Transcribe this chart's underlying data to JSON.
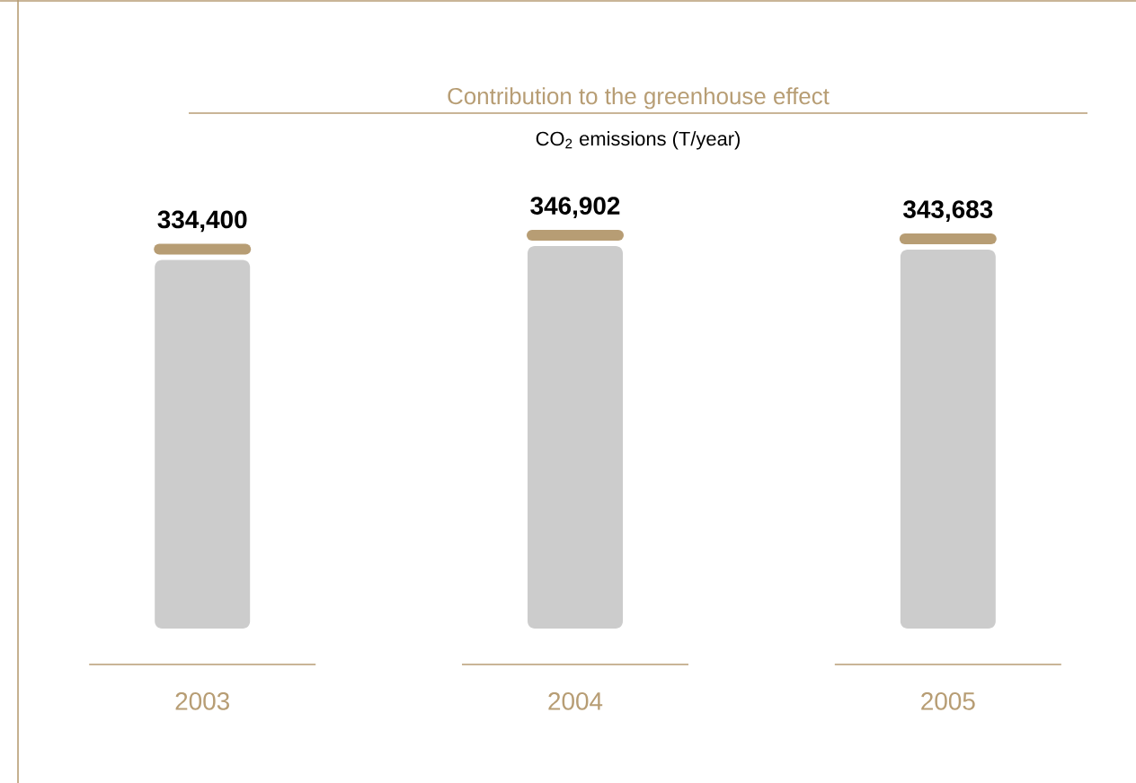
{
  "chart_data": {
    "type": "bar",
    "title": "Contribution to the greenhouse effect",
    "subtitle": "CO$_{2}$ emissions (T/year)",
    "categories": [
      "2003",
      "2004",
      "2005"
    ],
    "values": [
      334400,
      346902,
      343683
    ],
    "value_labels": [
      "334,400",
      "346,902",
      "343,683"
    ],
    "color": "#cccccc",
    "tick_labels": "x"
  }
}
